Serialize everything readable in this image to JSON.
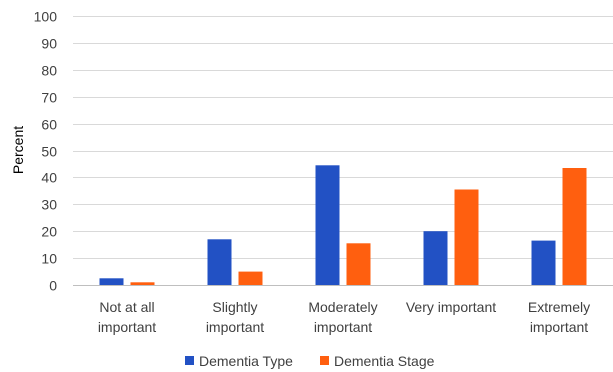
{
  "chart_data": {
    "type": "bar",
    "ylabel": "Percent",
    "xlabel": "",
    "ylim": [
      0,
      100
    ],
    "yticks": [
      0,
      10,
      20,
      30,
      40,
      50,
      60,
      70,
      80,
      90,
      100
    ],
    "grid": true,
    "legend_position": "bottom",
    "categories": [
      [
        "Not at all",
        "important"
      ],
      [
        "Slightly",
        "important"
      ],
      [
        "Moderately",
        "important"
      ],
      [
        "Very important"
      ],
      [
        "Extremely",
        "important"
      ]
    ],
    "series": [
      {
        "name": "Dementia Type",
        "color": "#2251c4",
        "values": [
          2.5,
          17,
          44.5,
          20,
          16.5
        ]
      },
      {
        "name": "Dementia Stage",
        "color": "#ff5f0f",
        "values": [
          1,
          5,
          15.5,
          35.5,
          43.5
        ]
      }
    ]
  }
}
